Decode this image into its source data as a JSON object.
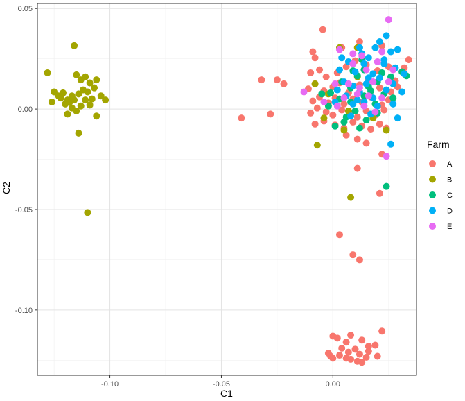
{
  "chart_data": {
    "type": "scatter",
    "xlabel": "C1",
    "ylabel": "C2",
    "xlim": [
      -0.1325,
      0.0375
    ],
    "ylim": [
      -0.1325,
      0.0525
    ],
    "x_ticks": [
      -0.1,
      -0.05,
      0.0
    ],
    "x_tick_labels": [
      "-0.10",
      "-0.05",
      "0.00"
    ],
    "y_ticks": [
      -0.1,
      -0.05,
      0.0,
      0.05
    ],
    "y_tick_labels": [
      "-0.10",
      "-0.05",
      "0.00",
      "0.05"
    ],
    "grid": true,
    "legend": {
      "title": "Farm",
      "position": "right",
      "entries": [
        "A",
        "B",
        "C",
        "D",
        "E"
      ]
    },
    "series": [
      {
        "name": "A",
        "color": "#F8766D",
        "points": [
          [
            -0.041,
            -0.0045
          ],
          [
            -0.032,
            0.0145
          ],
          [
            -0.028,
            -0.0025
          ],
          [
            -0.025,
            0.0145
          ],
          [
            -0.022,
            0.0125
          ],
          [
            -0.0045,
            0.0395
          ],
          [
            -0.009,
            0.0285
          ],
          [
            -0.008,
            0.0255
          ],
          [
            0.004,
            0.0305
          ],
          [
            0.012,
            0.0335
          ],
          [
            0.022,
            0.0315
          ],
          [
            0.032,
            0.0205
          ],
          [
            0.034,
            0.0245
          ],
          [
            -0.01,
            0.018
          ],
          [
            -0.006,
            0.0195
          ],
          [
            -0.003,
            0.016
          ],
          [
            0.002,
            0.018
          ],
          [
            0.006,
            0.021
          ],
          [
            0.01,
            0.024
          ],
          [
            0.015,
            0.022
          ],
          [
            0.02,
            0.019
          ],
          [
            0.025,
            0.021
          ],
          [
            0.028,
            0.014
          ],
          [
            -0.011,
            0.01
          ],
          [
            -0.008,
            0.0125
          ],
          [
            -0.004,
            0.009
          ],
          [
            0.0,
            0.011
          ],
          [
            0.003,
            0.013
          ],
          [
            0.007,
            0.008
          ],
          [
            0.012,
            0.012
          ],
          [
            0.016,
            0.0145
          ],
          [
            0.021,
            0.0105
          ],
          [
            0.026,
            0.0085
          ],
          [
            0.029,
            0.011
          ],
          [
            -0.009,
            0.004
          ],
          [
            -0.006,
            0.006
          ],
          [
            -0.002,
            0.003
          ],
          [
            0.001,
            0.0055
          ],
          [
            0.005,
            0.0025
          ],
          [
            0.009,
            0.005
          ],
          [
            0.013,
            0.0035
          ],
          [
            0.017,
            0.006
          ],
          [
            0.022,
            0.002
          ],
          [
            0.025,
            0.0045
          ],
          [
            -0.01,
            -0.002
          ],
          [
            -0.007,
            0.0005
          ],
          [
            -0.003,
            -0.0015
          ],
          [
            0.0,
            -0.003
          ],
          [
            0.004,
            -0.0005
          ],
          [
            0.008,
            -0.002
          ],
          [
            0.011,
            -0.004
          ],
          [
            0.015,
            -0.001
          ],
          [
            0.019,
            -0.003
          ],
          [
            0.023,
            -0.0005
          ],
          [
            -0.008,
            -0.0075
          ],
          [
            -0.004,
            -0.006
          ],
          [
            0.001,
            -0.008
          ],
          [
            0.005,
            -0.0095
          ],
          [
            0.009,
            -0.0065
          ],
          [
            0.013,
            -0.0085
          ],
          [
            0.017,
            -0.01
          ],
          [
            0.021,
            -0.0075
          ],
          [
            0.024,
            -0.0095
          ],
          [
            0.006,
            -0.013
          ],
          [
            0.011,
            -0.015
          ],
          [
            0.015,
            -0.017
          ],
          [
            0.022,
            -0.0225
          ],
          [
            0.011,
            -0.0295
          ],
          [
            0.021,
            -0.042
          ],
          [
            0.003,
            -0.0625
          ],
          [
            0.009,
            -0.0725
          ],
          [
            0.012,
            -0.075
          ],
          [
            0.022,
            -0.1105
          ],
          [
            0.0,
            -0.113
          ],
          [
            0.002,
            -0.114
          ],
          [
            0.006,
            -0.116
          ],
          [
            0.008,
            -0.1125
          ],
          [
            0.013,
            -0.115
          ],
          [
            0.016,
            -0.118
          ],
          [
            0.019,
            -0.1175
          ],
          [
            0.004,
            -0.119
          ],
          [
            0.01,
            -0.1195
          ],
          [
            -0.001,
            -0.123
          ],
          [
            0.0,
            -0.124
          ],
          [
            0.003,
            -0.1225
          ],
          [
            0.007,
            -0.121
          ],
          [
            0.012,
            -0.122
          ],
          [
            0.016,
            -0.1205
          ],
          [
            0.02,
            -0.123
          ],
          [
            0.006,
            -0.124
          ],
          [
            0.011,
            -0.1255
          ],
          [
            0.013,
            -0.126
          ],
          [
            0.008,
            -0.1245
          ],
          [
            -0.002,
            -0.1215
          ],
          [
            0.015,
            -0.1235
          ]
        ]
      },
      {
        "name": "B",
        "color": "#A3A500",
        "points": [
          [
            -0.128,
            0.018
          ],
          [
            -0.116,
            0.0315
          ],
          [
            -0.125,
            0.0085
          ],
          [
            -0.123,
            0.0065
          ],
          [
            -0.121,
            0.008
          ],
          [
            -0.119,
            0.0045
          ],
          [
            -0.117,
            0.0065
          ],
          [
            -0.115,
            0.017
          ],
          [
            -0.113,
            0.0145
          ],
          [
            -0.111,
            0.016
          ],
          [
            -0.109,
            0.013
          ],
          [
            -0.106,
            0.0145
          ],
          [
            -0.107,
            0.0105
          ],
          [
            -0.11,
            0.0085
          ],
          [
            -0.112,
            0.0095
          ],
          [
            -0.114,
            0.0075
          ],
          [
            -0.116,
            0.0045
          ],
          [
            -0.118,
            0.0035
          ],
          [
            -0.12,
            0.0025
          ],
          [
            -0.122,
            0.0055
          ],
          [
            -0.126,
            0.0035
          ],
          [
            -0.117,
            0.0005
          ],
          [
            -0.115,
            -0.001
          ],
          [
            -0.113,
            0.0015
          ],
          [
            -0.111,
            0.0045
          ],
          [
            -0.109,
            0.002
          ],
          [
            -0.119,
            -0.0025
          ],
          [
            -0.114,
            -0.012
          ],
          [
            -0.106,
            -0.0035
          ],
          [
            -0.102,
            0.0045
          ],
          [
            -0.11,
            -0.0515
          ],
          [
            -0.108,
            0.005
          ],
          [
            -0.104,
            0.0065
          ],
          [
            0.011,
            0.0305
          ],
          [
            0.003,
            0.0305
          ],
          [
            -0.008,
            0.0125
          ],
          [
            -0.002,
            0.0075
          ],
          [
            -0.004,
            -0.0045
          ],
          [
            -0.007,
            -0.018
          ],
          [
            0.007,
            -0.001
          ],
          [
            0.005,
            -0.0105
          ],
          [
            0.018,
            -0.0045
          ],
          [
            0.024,
            -0.0105
          ],
          [
            0.008,
            -0.044
          ],
          [
            0.011,
            0.016
          ]
        ]
      },
      {
        "name": "C",
        "color": "#00BF7D",
        "points": [
          [
            0.024,
            -0.0385
          ],
          [
            0.009,
            0.019
          ],
          [
            0.013,
            0.0245
          ],
          [
            0.026,
            0.016
          ],
          [
            0.031,
            0.0185
          ],
          [
            0.033,
            0.0165
          ],
          [
            0.004,
            0.0135
          ],
          [
            0.011,
            0.0165
          ],
          [
            0.016,
            0.011
          ],
          [
            0.02,
            0.0135
          ],
          [
            -0.005,
            0.0075
          ],
          [
            -0.002,
            0.0015
          ],
          [
            0.003,
            0.005
          ],
          [
            0.008,
            0.0035
          ],
          [
            0.014,
            0.0065
          ],
          [
            0.019,
            0.0025
          ],
          [
            0.023,
            0.0075
          ],
          [
            0.006,
            -0.004
          ],
          [
            0.01,
            -0.001
          ],
          [
            0.015,
            -0.0055
          ],
          [
            0.02,
            -0.002
          ],
          [
            0.001,
            -0.0085
          ],
          [
            0.005,
            -0.0065
          ],
          [
            0.012,
            -0.0095
          ],
          [
            -0.001,
            0.008
          ],
          [
            0.017,
            0.009
          ],
          [
            0.027,
            0.0055
          ],
          [
            0.022,
            0.018
          ],
          [
            0.014,
            0.0195
          ],
          [
            0.008,
            0.0105
          ]
        ]
      },
      {
        "name": "D",
        "color": "#00B0F6",
        "points": [
          [
            0.021,
            0.0335
          ],
          [
            0.024,
            0.0365
          ],
          [
            0.019,
            0.0305
          ],
          [
            0.026,
            0.0285
          ],
          [
            0.016,
            0.0255
          ],
          [
            0.012,
            0.0305
          ],
          [
            0.029,
            0.0295
          ],
          [
            0.007,
            0.0235
          ],
          [
            0.014,
            0.0225
          ],
          [
            0.023,
            0.0245
          ],
          [
            0.003,
            0.0195
          ],
          [
            0.01,
            0.0185
          ],
          [
            0.018,
            0.0175
          ],
          [
            0.028,
            0.0205
          ],
          [
            0.032,
            0.0175
          ],
          [
            0.005,
            0.0135
          ],
          [
            0.009,
            0.0115
          ],
          [
            0.015,
            0.0125
          ],
          [
            0.021,
            0.0155
          ],
          [
            0.027,
            0.0125
          ],
          [
            0.002,
            0.0095
          ],
          [
            0.006,
            0.0065
          ],
          [
            0.012,
            0.0085
          ],
          [
            0.018,
            0.0055
          ],
          [
            0.024,
            0.0095
          ],
          [
            0.031,
            0.0085
          ],
          [
            0.009,
            0.0025
          ],
          [
            0.014,
            0.0035
          ],
          [
            0.02,
            0.0015
          ],
          [
            0.027,
            0.0025
          ],
          [
            0.008,
            -0.0035
          ],
          [
            0.017,
            -0.0025
          ],
          [
            0.029,
            -0.0045
          ],
          [
            0.026,
            -0.0175
          ],
          [
            0.004,
            0.0255
          ],
          [
            0.013,
            0.0275
          ],
          [
            0.023,
            0.0225
          ],
          [
            0.011,
            0.0045
          ],
          [
            0.016,
            0.0155
          ],
          [
            0.001,
            0.0035
          ]
        ]
      },
      {
        "name": "E",
        "color": "#E76BF3",
        "points": [
          [
            0.025,
            0.0445
          ],
          [
            0.003,
            0.0295
          ],
          [
            0.009,
            0.0275
          ],
          [
            0.013,
            0.0265
          ],
          [
            0.022,
            0.0285
          ],
          [
            -0.013,
            0.0085
          ],
          [
            0.001,
            0.0125
          ],
          [
            0.007,
            0.0125
          ],
          [
            0.012,
            0.0105
          ],
          [
            0.018,
            0.0135
          ],
          [
            0.025,
            0.0135
          ],
          [
            0.005,
            0.0055
          ],
          [
            0.011,
            0.0075
          ],
          [
            0.016,
            0.0065
          ],
          [
            0.022,
            0.0055
          ],
          [
            -0.004,
            0.0035
          ],
          [
            0.002,
            0.0015
          ],
          [
            0.014,
            0.0015
          ],
          [
            0.019,
            -0.0015
          ],
          [
            0.024,
            -0.0235
          ],
          [
            0.009,
            0.0225
          ],
          [
            0.02,
            0.0235
          ],
          [
            0.027,
            0.0195
          ],
          [
            0.015,
            0.0195
          ]
        ]
      }
    ]
  }
}
